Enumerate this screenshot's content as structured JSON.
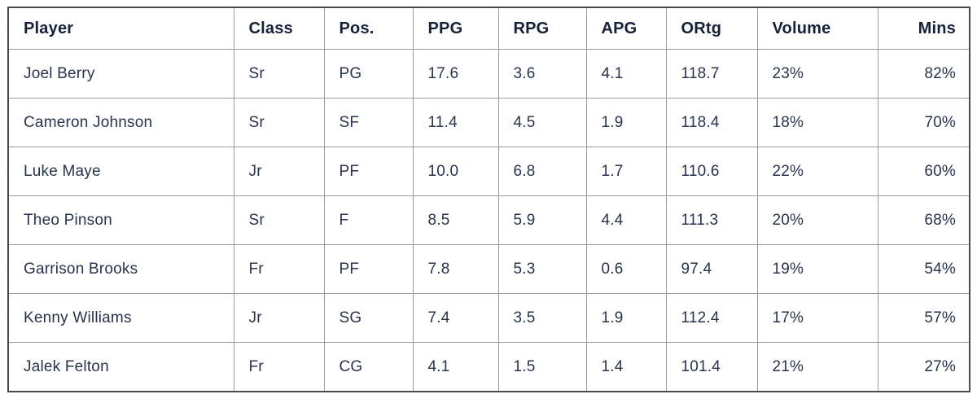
{
  "chart_data": {
    "type": "table",
    "columns": [
      "Player",
      "Class",
      "Pos.",
      "PPG",
      "RPG",
      "APG",
      "ORtg",
      "Volume",
      "Mins"
    ],
    "column_alignments": [
      "left",
      "left",
      "left",
      "left",
      "left",
      "left",
      "left",
      "left",
      "right"
    ],
    "rows": [
      [
        "Joel Berry",
        "Sr",
        "PG",
        "17.6",
        "3.6",
        "4.1",
        "118.7",
        "23%",
        "82%"
      ],
      [
        "Cameron Johnson",
        "Sr",
        "SF",
        "11.4",
        "4.5",
        "1.9",
        "118.4",
        "18%",
        "70%"
      ],
      [
        "Luke Maye",
        "Jr",
        "PF",
        "10.0",
        "6.8",
        "1.7",
        "110.6",
        "22%",
        "60%"
      ],
      [
        "Theo Pinson",
        "Sr",
        "F",
        "8.5",
        "5.9",
        "4.4",
        "111.3",
        "20%",
        "68%"
      ],
      [
        "Garrison Brooks",
        "Fr",
        "PF",
        "7.8",
        "5.3",
        "0.6",
        "97.4",
        "19%",
        "54%"
      ],
      [
        "Kenny Williams",
        "Jr",
        "SG",
        "7.4",
        "3.5",
        "1.9",
        "112.4",
        "17%",
        "57%"
      ],
      [
        "Jalek Felton",
        "Fr",
        "CG",
        "4.1",
        "1.5",
        "1.4",
        "101.4",
        "21%",
        "27%"
      ]
    ]
  },
  "colors": {
    "header_text": "#16203a",
    "body_text": "#273350",
    "outer_border": "#4a4a4a",
    "inner_border": "#9c9c9c",
    "background": "#ffffff"
  }
}
